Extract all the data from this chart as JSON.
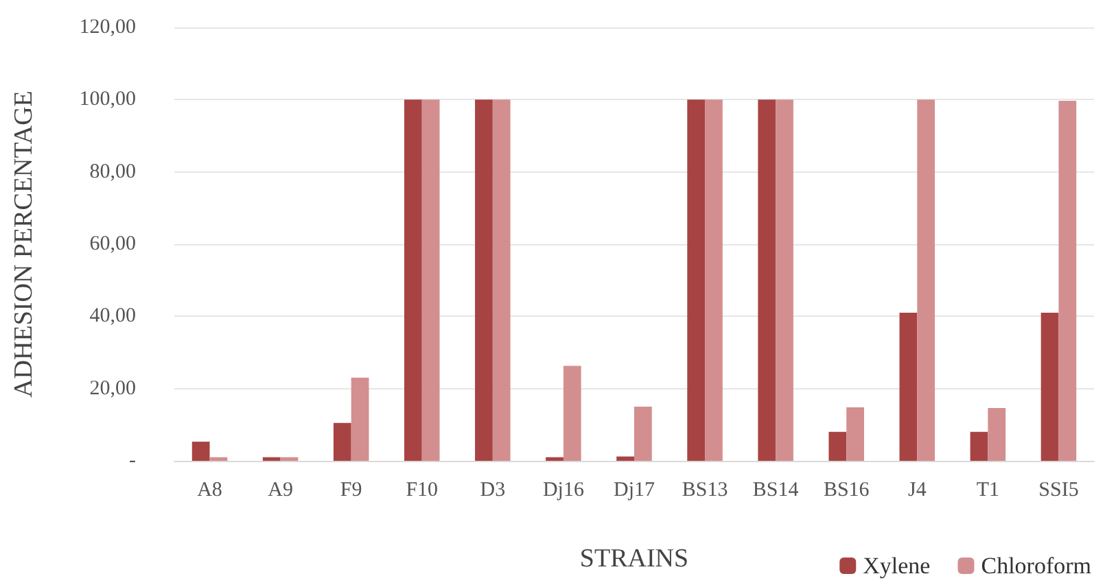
{
  "chart_data": {
    "type": "bar",
    "xlabel": "STRAINS",
    "ylabel": "ADHESION PERCENTAGE",
    "categories": [
      "A8",
      "A9",
      "F9",
      "F10",
      "D3",
      "Dj16",
      "Dj17",
      "BS13",
      "BS14",
      "BS16",
      "J4",
      "T1",
      "SSI5"
    ],
    "series": [
      {
        "name": "Xylene",
        "color": "#a84343",
        "values": [
          5.3,
          1,
          10.5,
          100,
          100,
          1,
          1.2,
          100,
          100,
          8,
          41,
          8,
          41
        ]
      },
      {
        "name": "Chloroform",
        "color": "#d38f8f",
        "values": [
          1,
          1,
          23,
          100,
          100,
          26.3,
          15,
          100,
          100,
          14.8,
          100,
          14.6,
          99.7
        ]
      }
    ],
    "ylim": [
      0,
      120
    ],
    "yticks": [
      {
        "value": 0,
        "label": "-"
      },
      {
        "value": 20,
        "label": "20,00"
      },
      {
        "value": 40,
        "label": "40,00"
      },
      {
        "value": 60,
        "label": "60,00"
      },
      {
        "value": 80,
        "label": "80,00"
      },
      {
        "value": 100,
        "label": "100,00"
      },
      {
        "value": 120,
        "label": "120,00"
      }
    ],
    "grid": "y",
    "legend": "bottom right"
  }
}
